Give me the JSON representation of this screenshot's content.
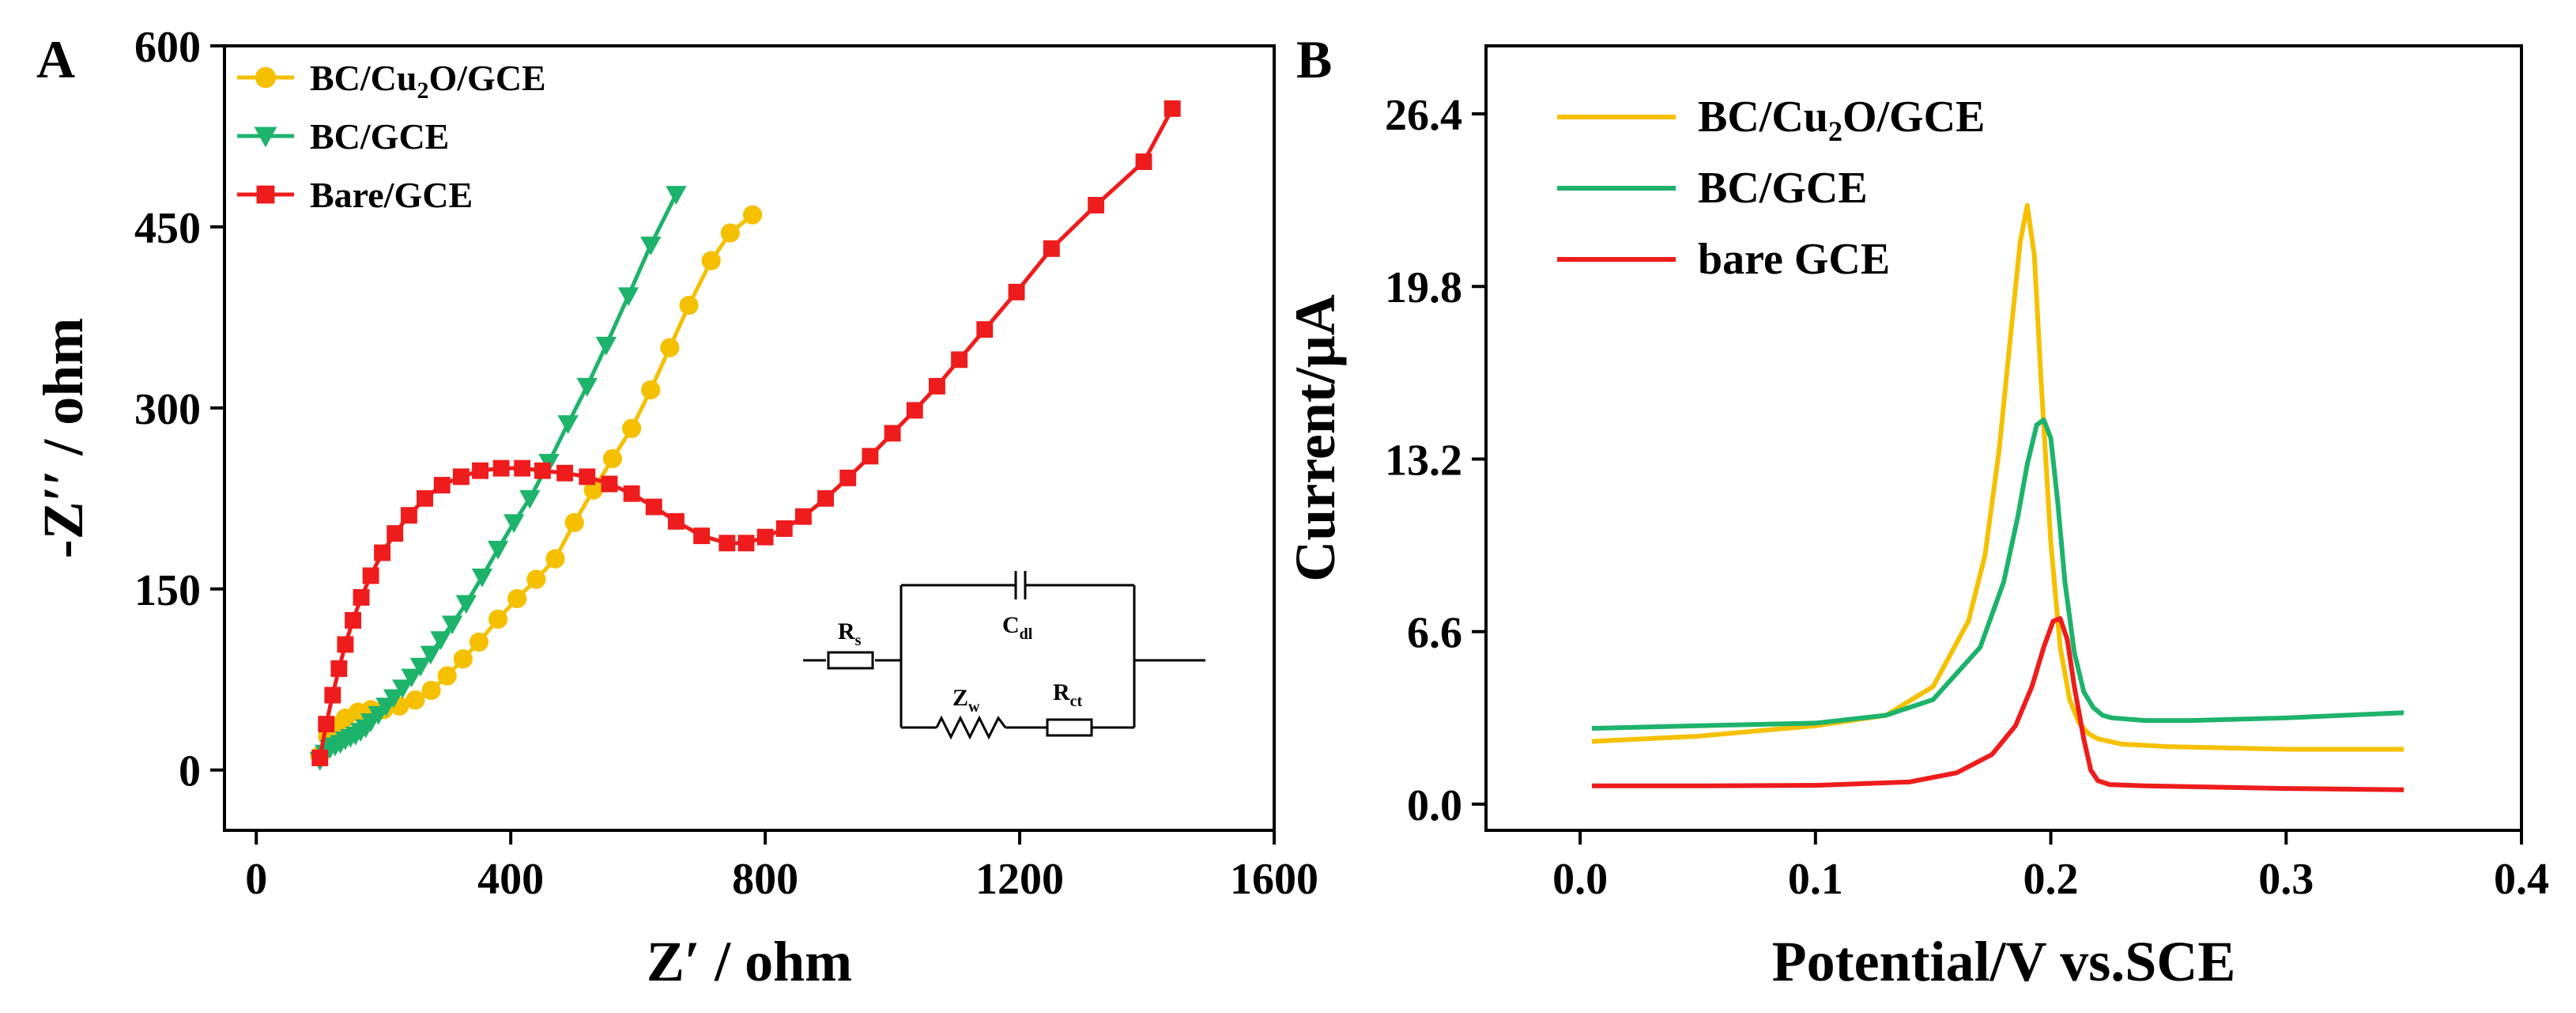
{
  "panel_a": {
    "letter": "A"
  },
  "panel_b": {
    "letter": "B"
  },
  "chart_data": [
    {
      "id": "A",
      "type": "scatter",
      "title": "",
      "xlabel": "Z′ / ohm",
      "ylabel": "-Z′′ / ohm",
      "xlim": [
        -50,
        1600
      ],
      "ylim": [
        -50,
        600
      ],
      "x_ticks": [
        0,
        400,
        800,
        1200,
        1600
      ],
      "y_ticks": [
        0,
        150,
        300,
        450,
        600
      ],
      "grid": false,
      "legend_position": "top-left",
      "series": [
        {
          "name": "BC/Cu₂O/GCE",
          "legend_main": "BC/Cu",
          "legend_sub": "2",
          "legend_tail": "O/GCE",
          "color": "#f5c000",
          "marker": "circle",
          "x": [
            100,
            112,
            125,
            140,
            160,
            180,
            200,
            225,
            250,
            275,
            300,
            325,
            350,
            380,
            410,
            440,
            470,
            500,
            530,
            560,
            590,
            620,
            650,
            680,
            715,
            745,
            780
          ],
          "y": [
            12,
            28,
            36,
            43,
            48,
            50,
            50,
            53,
            58,
            66,
            78,
            92,
            106,
            125,
            142,
            158,
            175,
            205,
            232,
            258,
            283,
            315,
            350,
            385,
            422,
            445,
            460
          ]
        },
        {
          "name": "BC/GCE",
          "color": "#1db36b",
          "marker": "triangle-down",
          "x": [
            100,
            108,
            116,
            124,
            132,
            140,
            148,
            156,
            164,
            172,
            180,
            192,
            204,
            216,
            230,
            244,
            258,
            274,
            290,
            308,
            330,
            355,
            380,
            405,
            430,
            460,
            490,
            520,
            550,
            585,
            620,
            660
          ],
          "y": [
            8,
            14,
            18,
            20,
            22,
            25,
            27,
            29,
            32,
            35,
            40,
            46,
            53,
            60,
            68,
            77,
            86,
            96,
            108,
            121,
            138,
            160,
            183,
            205,
            225,
            255,
            287,
            318,
            352,
            393,
            435,
            477
          ]
        },
        {
          "name": "Bare/GCE",
          "color": "#ee1c1c",
          "marker": "square",
          "x": [
            100,
            110,
            120,
            130,
            140,
            152,
            165,
            180,
            198,
            218,
            240,
            265,
            292,
            322,
            352,
            385,
            418,
            450,
            485,
            520,
            555,
            590,
            625,
            660,
            700,
            740,
            770,
            800,
            830,
            860,
            895,
            930,
            965,
            1000,
            1035,
            1070,
            1105,
            1145,
            1195,
            1250,
            1320,
            1395,
            1440
          ],
          "y": [
            10,
            38,
            62,
            84,
            104,
            124,
            143,
            161,
            180,
            196,
            211,
            225,
            236,
            243,
            248,
            250,
            250,
            248,
            246,
            243,
            237,
            229,
            218,
            206,
            194,
            188,
            188,
            193,
            200,
            210,
            225,
            242,
            260,
            279,
            298,
            318,
            340,
            365,
            396,
            432,
            468,
            504,
            548
          ]
        }
      ],
      "inset": {
        "type": "circuit",
        "labels": {
          "rs": "R",
          "rs_sub": "s",
          "cdl": "C",
          "cdl_sub": "dl",
          "zw": "Z",
          "zw_sub": "w",
          "rct": "R",
          "rct_sub": "ct"
        }
      }
    },
    {
      "id": "B",
      "type": "line",
      "title": "",
      "xlabel": "Potential/V vs.SCE",
      "ylabel": "Current/μA",
      "xlim": [
        -0.04,
        0.4
      ],
      "ylim": [
        -1.0,
        29.0
      ],
      "x_ticks": [
        0.0,
        0.1,
        0.2,
        0.3,
        0.4
      ],
      "x_tick_labels": [
        "0.0",
        "0.1",
        "0.2",
        "0.3",
        "0.4"
      ],
      "y_ticks": [
        0.0,
        6.6,
        13.2,
        19.8,
        26.4
      ],
      "y_tick_labels": [
        "0.0",
        "6.6",
        "13.2",
        "19.8",
        "26.4"
      ],
      "grid": false,
      "legend_position": "top-left",
      "series": [
        {
          "name": "BC/Cu₂O/GCE",
          "legend_main": "BC/Cu",
          "legend_sub": "2",
          "legend_tail": "O/GCE",
          "color": "#f5c000",
          "x": [
            0.005,
            0.05,
            0.1,
            0.13,
            0.15,
            0.165,
            0.172,
            0.178,
            0.183,
            0.187,
            0.19,
            0.193,
            0.196,
            0.2,
            0.204,
            0.208,
            0.212,
            0.216,
            0.22,
            0.23,
            0.25,
            0.3,
            0.35
          ],
          "y": [
            2.4,
            2.6,
            3.0,
            3.4,
            4.5,
            7.0,
            9.5,
            13.5,
            18.0,
            21.5,
            22.9,
            21.0,
            16.0,
            10.0,
            6.0,
            4.0,
            3.1,
            2.7,
            2.5,
            2.3,
            2.2,
            2.1,
            2.1
          ]
        },
        {
          "name": "BC/GCE",
          "color": "#1db36b",
          "x": [
            0.005,
            0.05,
            0.1,
            0.13,
            0.15,
            0.17,
            0.18,
            0.186,
            0.19,
            0.194,
            0.197,
            0.2,
            0.203,
            0.206,
            0.21,
            0.214,
            0.218,
            0.222,
            0.226,
            0.24,
            0.26,
            0.3,
            0.35
          ],
          "y": [
            2.9,
            3.0,
            3.1,
            3.4,
            4.0,
            6.0,
            8.5,
            11.0,
            13.0,
            14.5,
            14.7,
            14.0,
            11.5,
            8.5,
            5.8,
            4.3,
            3.7,
            3.4,
            3.3,
            3.2,
            3.2,
            3.3,
            3.5
          ]
        },
        {
          "name": "bare GCE",
          "color": "#ee1c1c",
          "x": [
            0.005,
            0.05,
            0.1,
            0.14,
            0.16,
            0.175,
            0.185,
            0.192,
            0.197,
            0.201,
            0.204,
            0.207,
            0.21,
            0.214,
            0.217,
            0.22,
            0.225,
            0.24,
            0.3,
            0.35
          ],
          "y": [
            0.7,
            0.7,
            0.72,
            0.85,
            1.2,
            1.9,
            3.0,
            4.5,
            6.0,
            7.0,
            7.1,
            6.3,
            4.5,
            2.5,
            1.3,
            0.9,
            0.75,
            0.7,
            0.6,
            0.55
          ]
        }
      ]
    }
  ]
}
